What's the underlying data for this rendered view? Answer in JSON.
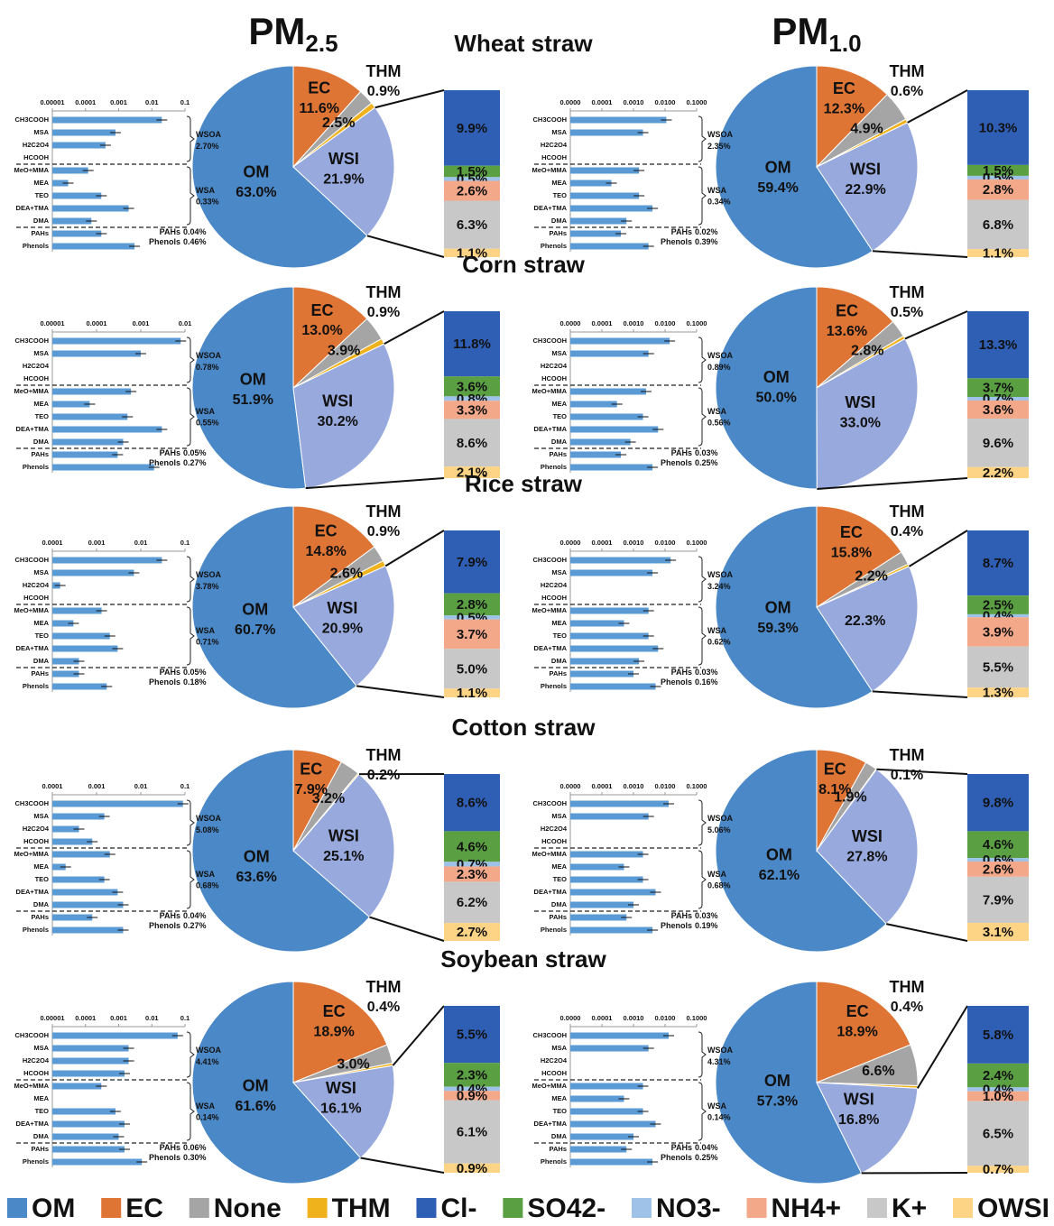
{
  "headers": [
    {
      "main": "PM",
      "sub": "2.5"
    },
    {
      "main": "PM",
      "sub": "1.0"
    }
  ],
  "legend": {
    "names": [
      "OM",
      "EC",
      "None",
      "THM",
      "Cl-",
      "SO42-",
      "NO3-",
      "NH4+",
      "K+",
      "OWSI"
    ],
    "colors": [
      "#4a88c7",
      "#df7535",
      "#a5a5a5",
      "#efb21c",
      "#2f5fb5",
      "#5aa043",
      "#9ec2e8",
      "#f3a88a",
      "#c8c8c8",
      "#fdd385"
    ]
  },
  "wsi_color": "#97a9dd",
  "species": [
    "CH3COOH",
    "MSA",
    "H2C2O4",
    "HCOOH",
    "MeO+MMA",
    "MEA",
    "TEO",
    "DEA+TMA",
    "DMA",
    "PAHs",
    "Phenols"
  ],
  "groups": [
    "WSOA",
    "WSA",
    "PAHs",
    "Phenols"
  ],
  "chart_data": [
    {
      "type": "pie",
      "title": "Wheat straw",
      "categories": [
        "OM",
        "EC",
        null,
        "THM",
        "WSI"
      ],
      "values": [
        63.0,
        11.6,
        2.5,
        0.9,
        21.9
      ],
      "value_labels": [
        "63.0%",
        "11.6%",
        "2.5%",
        "0.9%",
        "21.9%"
      ],
      "breakdown": {
        "values": [
          9.9,
          1.5,
          0.5,
          2.6,
          6.3,
          1.1
        ],
        "value_labels": [
          "9.9%",
          "1.5%",
          "0.5%",
          "2.6%",
          "6.3%",
          "1.1%"
        ]
      },
      "log_chart": {
        "xlim": [
          1e-05,
          0.1
        ],
        "xticks": [
          1e-05,
          0.0001,
          0.001,
          0.01,
          0.1
        ],
        "values": [
          0.02,
          0.0008,
          0.0004,
          null,
          0.00012,
          3e-05,
          0.0003,
          0.002,
          0.00015,
          0.0003,
          0.003
        ],
        "group_values": [
          "2.70%",
          "0.33%",
          "0.04%",
          "0.46%"
        ]
      }
    },
    {
      "type": "pie",
      "categories": [
        "OM",
        "EC",
        null,
        "THM",
        "WSI"
      ],
      "values": [
        59.4,
        12.3,
        4.9,
        0.6,
        22.9
      ],
      "value_labels": [
        "59.4%",
        "12.3%",
        "4.9%",
        "0.6%",
        "22.9%"
      ],
      "breakdown": {
        "values": [
          10.3,
          1.5,
          0.5,
          2.8,
          6.8,
          1.1
        ],
        "value_labels": [
          "10.3%",
          "1.5%",
          "0.5%",
          "2.8%",
          "6.8%",
          "1.1%"
        ]
      },
      "log_chart": {
        "xlim": [
          1e-05,
          0.1
        ],
        "xticks": [
          {
            "value": 1e-05,
            "label": "0.0000"
          },
          {
            "value": 0.0001,
            "label": "0.0001"
          },
          {
            "value": 0.001,
            "label": "0.0010"
          },
          {
            "value": 0.01,
            "label": "0.0100"
          },
          {
            "value": 0.1,
            "label": "0.1000"
          }
        ],
        "values": [
          0.011,
          0.002,
          null,
          null,
          0.0015,
          0.0002,
          0.0015,
          0.004,
          0.0006,
          0.0004,
          0.003
        ],
        "group_values": [
          "2.35%",
          "0.34%",
          "0.02%",
          "0.39%"
        ]
      }
    },
    {
      "type": "pie",
      "title": "Corn straw",
      "categories": [
        "OM",
        "EC",
        null,
        "THM",
        "WSI"
      ],
      "values": [
        51.9,
        13.0,
        3.9,
        0.9,
        30.2
      ],
      "value_labels": [
        "51.9%",
        "13.0%",
        "3.9%",
        "0.9%",
        "30.2%"
      ],
      "breakdown": {
        "values": [
          11.8,
          3.6,
          0.8,
          3.3,
          8.6,
          2.1
        ],
        "value_labels": [
          "11.8%",
          "3.6%",
          "0.8%",
          "3.3%",
          "8.6%",
          "2.1%"
        ]
      },
      "log_chart": {
        "xlim": [
          1e-05,
          0.01
        ],
        "xticks": [
          1e-05,
          0.0001,
          0.001,
          0.01
        ],
        "values": [
          0.008,
          0.001,
          null,
          null,
          0.0006,
          7e-05,
          0.0005,
          0.003,
          0.0004,
          0.0003,
          0.002
        ],
        "group_values": [
          "0.78%",
          "0.55%",
          "0.05%",
          "0.27%"
        ]
      }
    },
    {
      "type": "pie",
      "categories": [
        "OM",
        "EC",
        null,
        "THM",
        "WSI"
      ],
      "values": [
        50.0,
        13.6,
        2.8,
        0.5,
        33.0
      ],
      "value_labels": [
        "50.0%",
        "13.6%",
        "2.8%",
        "0.5%",
        "33.0%"
      ],
      "breakdown": {
        "values": [
          13.3,
          3.7,
          0.7,
          3.6,
          9.6,
          2.2
        ],
        "value_labels": [
          "13.3%",
          "3.7%",
          "0.7%",
          "3.6%",
          "9.6%",
          "2.2%"
        ]
      },
      "log_chart": {
        "xlim": [
          1e-05,
          0.1
        ],
        "xticks": [
          {
            "value": 1e-05,
            "label": "0.0000"
          },
          {
            "value": 0.0001,
            "label": "0.0001"
          },
          {
            "value": 0.001,
            "label": "0.0010"
          },
          {
            "value": 0.01,
            "label": "0.0100"
          },
          {
            "value": 0.1,
            "label": "0.1000"
          }
        ],
        "values": [
          0.014,
          0.003,
          null,
          null,
          0.0025,
          0.0003,
          0.002,
          0.006,
          0.0008,
          0.0004,
          0.004
        ],
        "group_values": [
          "0.89%",
          "0.56%",
          "0.03%",
          "0.25%"
        ]
      }
    },
    {
      "type": "pie",
      "title": "Rice straw",
      "categories": [
        "OM",
        "EC",
        null,
        "THM",
        "WSI"
      ],
      "values": [
        60.7,
        14.8,
        2.6,
        0.9,
        20.9
      ],
      "value_labels": [
        "60.7%",
        "14.8%",
        "2.6%",
        "0.9%",
        "20.9%"
      ],
      "breakdown": {
        "values": [
          7.9,
          2.8,
          0.5,
          3.7,
          5.0,
          1.1
        ],
        "value_labels": [
          "7.9%",
          "2.8%",
          "0.5%",
          "3.7%",
          "5.0%",
          "1.1%"
        ]
      },
      "log_chart": {
        "xlim": [
          0.0001,
          0.1
        ],
        "xticks": [
          0.0001,
          0.001,
          0.01,
          0.1
        ],
        "values": [
          0.03,
          0.007,
          0.00015,
          null,
          0.0013,
          0.0003,
          0.002,
          0.003,
          0.0004,
          0.0004,
          0.0017
        ],
        "group_values": [
          "3.78%",
          "0.71%",
          "0.05%",
          "0.18%"
        ]
      }
    },
    {
      "type": "pie",
      "categories": [
        "OM",
        "EC",
        null,
        "THM",
        null
      ],
      "values": [
        59.3,
        15.8,
        2.2,
        0.4,
        22.3
      ],
      "value_labels": [
        "59.3%",
        "15.8%",
        "2.2%",
        "0.4%",
        "22.3%"
      ],
      "breakdown": {
        "values": [
          8.7,
          2.5,
          0.4,
          3.9,
          5.5,
          1.3
        ],
        "value_labels": [
          "8.7%",
          "2.5%",
          "0.4%",
          "3.9%",
          "5.5%",
          "1.3%"
        ]
      },
      "log_chart": {
        "xlim": [
          1e-05,
          0.1
        ],
        "xticks": [
          {
            "value": 1e-05,
            "label": "0.0000"
          },
          {
            "value": 0.0001,
            "label": "0.0001"
          },
          {
            "value": 0.001,
            "label": "0.0010"
          },
          {
            "value": 0.01,
            "label": "0.0100"
          },
          {
            "value": 0.1,
            "label": "0.1000"
          }
        ],
        "values": [
          0.015,
          0.004,
          null,
          null,
          0.003,
          0.0005,
          0.003,
          0.006,
          0.0015,
          0.001,
          0.005
        ],
        "group_values": [
          "3.24%",
          "0.62%",
          "0.03%",
          "0.16%"
        ]
      }
    },
    {
      "type": "pie",
      "title": "Cotton straw",
      "categories": [
        "OM",
        "EC",
        null,
        "THM",
        "WSI"
      ],
      "values": [
        63.6,
        7.9,
        3.2,
        0.2,
        25.1
      ],
      "value_labels": [
        "63.6%",
        "7.9%",
        "3.2%",
        "0.2%",
        "25.1%"
      ],
      "breakdown": {
        "values": [
          8.6,
          4.6,
          0.7,
          2.3,
          6.2,
          2.7
        ],
        "value_labels": [
          "8.6%",
          "4.6%",
          "0.7%",
          "2.3%",
          "6.2%",
          "2.7%"
        ]
      },
      "log_chart": {
        "xlim": [
          0.0001,
          0.1
        ],
        "xticks": [
          0.0001,
          0.001,
          0.01,
          0.1
        ],
        "values": [
          0.09,
          0.0015,
          0.0004,
          0.0008,
          0.002,
          0.0002,
          0.0015,
          0.003,
          0.004,
          0.0008,
          0.004
        ],
        "group_values": [
          "5.08%",
          "0.68%",
          "0.04%",
          "0.27%"
        ]
      }
    },
    {
      "type": "pie",
      "categories": [
        "OM",
        "EC",
        null,
        "THM",
        "WSI"
      ],
      "values": [
        62.1,
        8.1,
        1.9,
        0.1,
        27.8
      ],
      "value_labels": [
        "62.1%",
        "8.1%",
        "1.9%",
        "0.1%",
        "27.8%"
      ],
      "breakdown": {
        "values": [
          9.8,
          4.6,
          0.6,
          2.6,
          7.9,
          3.1
        ],
        "value_labels": [
          "9.8%",
          "4.6%",
          "0.6%",
          "2.6%",
          "7.9%",
          "3.1%"
        ]
      },
      "log_chart": {
        "xlim": [
          1e-05,
          0.1
        ],
        "xticks": [
          {
            "value": 1e-05,
            "label": "0.0000"
          },
          {
            "value": 0.0001,
            "label": "0.0001"
          },
          {
            "value": 0.001,
            "label": "0.0010"
          },
          {
            "value": 0.01,
            "label": "0.0100"
          },
          {
            "value": 0.1,
            "label": "0.1000"
          }
        ],
        "values": [
          0.013,
          0.003,
          null,
          null,
          0.002,
          0.0005,
          0.002,
          0.005,
          0.001,
          0.0006,
          0.004
        ],
        "group_values": [
          "5.06%",
          "0.68%",
          "0.03%",
          "0.19%"
        ]
      }
    },
    {
      "type": "pie",
      "title": "Soybean straw",
      "categories": [
        "OM",
        "EC",
        null,
        "THM",
        "WSI"
      ],
      "values": [
        61.6,
        18.9,
        3.0,
        0.4,
        16.1
      ],
      "value_labels": [
        "61.6%",
        "18.9%",
        "3.0%",
        "0.4%",
        "16.1%"
      ],
      "breakdown": {
        "values": [
          5.5,
          2.3,
          0.4,
          0.9,
          6.1,
          0.9
        ],
        "value_labels": [
          "5.5%",
          "2.3%",
          "0.4%",
          "0.9%",
          "6.1%",
          "0.9%"
        ]
      },
      "log_chart": {
        "xlim": [
          1e-05,
          0.1
        ],
        "xticks": [
          1e-05,
          0.0001,
          0.001,
          0.01,
          0.1
        ],
        "values": [
          0.06,
          0.002,
          0.002,
          0.0015,
          0.0003,
          null,
          0.0008,
          0.0015,
          0.001,
          0.0015,
          0.005
        ],
        "group_values": [
          "4.41%",
          "0.14%",
          "0.06%",
          "0.30%"
        ]
      }
    },
    {
      "type": "pie",
      "categories": [
        "OM",
        "EC",
        null,
        "THM",
        "WSI"
      ],
      "values": [
        57.3,
        18.9,
        6.6,
        0.4,
        16.8
      ],
      "value_labels": [
        "57.3%",
        "18.9%",
        "6.6%",
        "0.4%",
        "16.8%"
      ],
      "breakdown": {
        "values": [
          5.8,
          2.4,
          0.4,
          1.0,
          6.5,
          0.7
        ],
        "value_labels": [
          "5.8%",
          "2.4%",
          "0.4%",
          "1.0%",
          "6.5%",
          "0.7%"
        ]
      },
      "log_chart": {
        "xlim": [
          1e-05,
          0.1
        ],
        "xticks": [
          {
            "value": 1e-05,
            "label": "0.0000"
          },
          {
            "value": 0.0001,
            "label": "0.0001"
          },
          {
            "value": 0.001,
            "label": "0.0010"
          },
          {
            "value": 0.01,
            "label": "0.0100"
          },
          {
            "value": 0.1,
            "label": "0.1000"
          }
        ],
        "values": [
          0.013,
          0.003,
          null,
          null,
          0.002,
          0.0005,
          0.002,
          0.005,
          0.001,
          0.0006,
          0.004
        ],
        "group_values": [
          "4.31%",
          "0.14%",
          "0.04%",
          "0.25%"
        ]
      }
    }
  ]
}
